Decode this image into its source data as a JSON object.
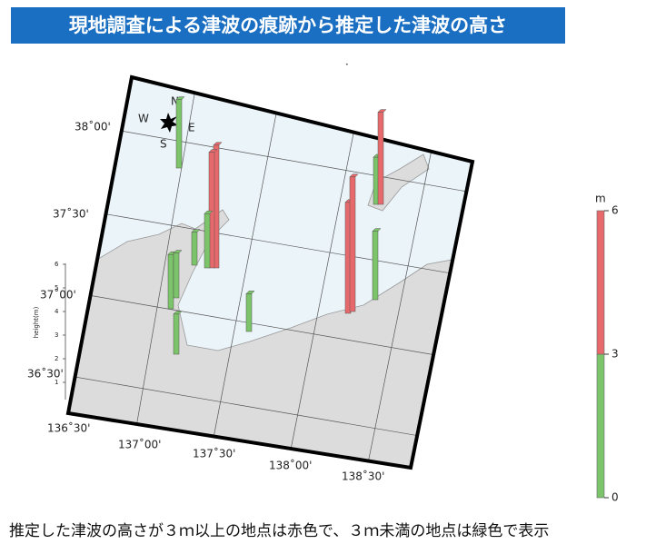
{
  "header": {
    "title": "現地調査による津波の痕跡から推定した津波の高さ"
  },
  "map": {
    "lat_labels": [
      "38˚00'",
      "37˚30'",
      "37˚00'",
      "36˚30'"
    ],
    "lon_labels": [
      "136˚30'",
      "137˚00'",
      "137˚30'",
      "138˚00'",
      "138˚30'"
    ],
    "compass": [
      "N",
      "W",
      "E",
      "S"
    ],
    "height_axis": {
      "label": "height(m)",
      "ticks": [
        1,
        2,
        3,
        4,
        5,
        6
      ]
    },
    "sites": [
      {
        "height": 2.9
      },
      {
        "height": 5.2
      },
      {
        "height": 4.9
      },
      {
        "height": 2.3
      },
      {
        "height": 1.4
      },
      {
        "height": 2.3
      },
      {
        "height": 1.9
      },
      {
        "height": 1.7
      },
      {
        "height": 1.6
      },
      {
        "height": 4.7
      },
      {
        "height": 5.7
      },
      {
        "height": 2.9
      },
      {
        "height": 2.0
      },
      {
        "height": 3.9
      }
    ]
  },
  "colorbar": {
    "unit": "m",
    "ylim": [
      0,
      6
    ],
    "yticks": [
      0,
      3,
      6
    ],
    "segments": [
      {
        "from": 0,
        "to": 3,
        "color": "#7cc46a"
      },
      {
        "from": 3,
        "to": 6,
        "color": "#e8696b"
      }
    ]
  },
  "caption": "推定した津波の高さが３ｍ以上の地点は赤色で、３ｍ未満の地点は緑色で表示"
}
